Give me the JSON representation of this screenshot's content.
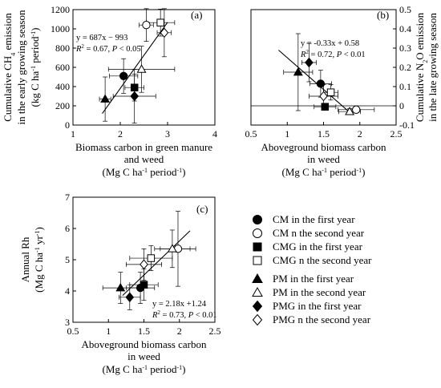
{
  "markers": {
    "CM1": {
      "shape": "circle",
      "fill": "#000000"
    },
    "CM2": {
      "shape": "circle",
      "fill": "#ffffff"
    },
    "CMG1": {
      "shape": "square",
      "fill": "#000000"
    },
    "CMG2": {
      "shape": "square",
      "fill": "#ffffff"
    },
    "PM1": {
      "shape": "triangle",
      "fill": "#000000"
    },
    "PM2": {
      "shape": "triangle",
      "fill": "#ffffff"
    },
    "PMG1": {
      "shape": "diamond",
      "fill": "#000000"
    },
    "PMG2": {
      "shape": "diamond",
      "fill": "#ffffff"
    }
  },
  "legend": {
    "items": [
      {
        "key": "CM1",
        "label": "CM in the first year"
      },
      {
        "key": "CM2",
        "label": "CM n the second year"
      },
      {
        "key": "CMG1",
        "label": "CMG in the first year"
      },
      {
        "key": "CMG2",
        "label": "CMG n the second year"
      },
      {
        "key": "PM1",
        "label": "PM in the first year"
      },
      {
        "key": "PM2",
        "label": "PM in the second year"
      },
      {
        "key": "PMG1",
        "label": "PMG in the first year"
      },
      {
        "key": "PMG2",
        "label": "PMG n the second year"
      }
    ]
  },
  "chart_data": [
    {
      "type": "scatter",
      "panel_label": "(a)",
      "ylabel_lines": [
        "Cumulative CH4 emission",
        "in the early growing season",
        "(kg C ha-1 period-1)"
      ],
      "xlabel_lines": [
        "Biomass carbon in green manure",
        "and weed"
      ],
      "xunit": "(Mg C ha-1 period-1)",
      "xlim": [
        1,
        4
      ],
      "ylim": [
        0,
        1200
      ],
      "xticks": [
        "1",
        "2",
        "3",
        "4"
      ],
      "yticks": [
        "0",
        "200",
        "400",
        "600",
        "800",
        "1000",
        "1200"
      ],
      "equation": "y = 687x − 993",
      "stats": "R2 = 0.67, P < 0.05",
      "regression": {
        "slope": 687,
        "intercept": -993,
        "x_range": [
          1.62,
          3.0
        ]
      },
      "points": [
        {
          "key": "CM1",
          "x": 2.07,
          "y": 510,
          "xerr": 0.3,
          "yerr": 180
        },
        {
          "key": "CM2",
          "x": 2.55,
          "y": 1040,
          "xerr": 0.15,
          "yerr": 170
        },
        {
          "key": "CMG1",
          "x": 2.3,
          "y": 390,
          "xerr": 0.2,
          "yerr": 140
        },
        {
          "key": "CMG2",
          "x": 2.85,
          "y": 1065,
          "xerr": 0.3,
          "yerr": 140
        },
        {
          "key": "PM1",
          "x": 1.68,
          "y": 270,
          "xerr": 0.12,
          "yerr": 230
        },
        {
          "key": "PM2",
          "x": 2.45,
          "y": 580,
          "xerr": 0.7,
          "yerr": 240
        },
        {
          "key": "PMG1",
          "x": 2.3,
          "y": 300,
          "xerr": 0.45,
          "yerr": 280
        },
        {
          "key": "PMG2",
          "x": 2.93,
          "y": 960,
          "xerr": 0.15,
          "yerr": 250
        }
      ]
    },
    {
      "type": "scatter",
      "panel_label": "(b)",
      "ylabel_lines": [
        "Cumulative N2O emission",
        "in the late growing season",
        "(kg N ha-1 period-1)"
      ],
      "xlabel_lines": [
        "Aboveground biomass carbon",
        "in weed"
      ],
      "xunit": "(Mg C ha-1 period-1)",
      "xlim": [
        0.5,
        2.5
      ],
      "ylim": [
        -0.1,
        0.5
      ],
      "xticks": [
        "0.5",
        "1",
        "1.5",
        "2",
        "2.5"
      ],
      "yticks": [
        "-0.1",
        "0",
        "0.1",
        "0.2",
        "0.3",
        "0.4",
        "0.5"
      ],
      "equation": "y = -0.33x + 0.58",
      "stats": "R2 = 0.72, P < 0.01",
      "regression": {
        "slope": -0.33,
        "intercept": 0.58,
        "x_range": [
          0.88,
          1.9
        ]
      },
      "points": [
        {
          "key": "CM1",
          "x": 1.46,
          "y": 0.115,
          "xerr": 0.15,
          "yerr": 0.07
        },
        {
          "key": "CM2",
          "x": 1.95,
          "y": -0.02,
          "xerr": 0.25,
          "yerr": 0.01
        },
        {
          "key": "CMG1",
          "x": 1.52,
          "y": -0.005,
          "xerr": 0.15,
          "yerr": 0.01
        },
        {
          "key": "CMG2",
          "x": 1.6,
          "y": 0.07,
          "xerr": 0.1,
          "yerr": 0.04
        },
        {
          "key": "PM1",
          "x": 1.15,
          "y": 0.175,
          "xerr": 0.2,
          "yerr": 0.2
        },
        {
          "key": "PM2",
          "x": 1.86,
          "y": -0.03,
          "xerr": 0.15,
          "yerr": 0.015
        },
        {
          "key": "PMG1",
          "x": 1.3,
          "y": 0.225,
          "xerr": 0.1,
          "yerr": 0.1
        },
        {
          "key": "PMG2",
          "x": 1.5,
          "y": 0.05,
          "xerr": 0.2,
          "yerr": 0.06
        }
      ]
    },
    {
      "type": "scatter",
      "panel_label": "(c)",
      "ylabel_lines": [
        "Annual Rh",
        "(Mg C ha-1 yr-1)"
      ],
      "xlabel_lines": [
        "Aboveground biomass carbon",
        "in weed"
      ],
      "xunit": "(Mg C ha-1 period-1)",
      "xlim": [
        0.5,
        2.5
      ],
      "ylim": [
        3,
        7
      ],
      "xticks": [
        "0.5",
        "1",
        "1.5",
        "2",
        "2.5"
      ],
      "yticks": [
        "3",
        "4",
        "5",
        "6",
        "7"
      ],
      "equation": "y = 2.18x +1.24",
      "stats": "R2 = 0.73, P < 0.01",
      "regression": {
        "slope": 2.18,
        "intercept": 1.24,
        "x_range": [
          1.2,
          2.15
        ]
      },
      "points": [
        {
          "key": "CM1",
          "x": 1.45,
          "y": 4.1,
          "xerr": 0.2,
          "yerr": 0.5
        },
        {
          "key": "CM2",
          "x": 1.98,
          "y": 5.35,
          "xerr": 0.25,
          "yerr": 1.2
        },
        {
          "key": "CMG1",
          "x": 1.5,
          "y": 4.2,
          "xerr": 0.2,
          "yerr": 0.5
        },
        {
          "key": "CMG2",
          "x": 1.6,
          "y": 5.05,
          "xerr": 0.3,
          "yerr": 0.4
        },
        {
          "key": "PM1",
          "x": 1.17,
          "y": 4.1,
          "xerr": 0.25,
          "yerr": 0.5
        },
        {
          "key": "PM2",
          "x": 1.9,
          "y": 5.35,
          "xerr": 0.25,
          "yerr": 0.6
        },
        {
          "key": "PMG1",
          "x": 1.3,
          "y": 3.8,
          "xerr": 0.15,
          "yerr": 0.4
        },
        {
          "key": "PMG2",
          "x": 1.5,
          "y": 4.85,
          "xerr": 0.25,
          "yerr": 0.5
        }
      ]
    }
  ]
}
